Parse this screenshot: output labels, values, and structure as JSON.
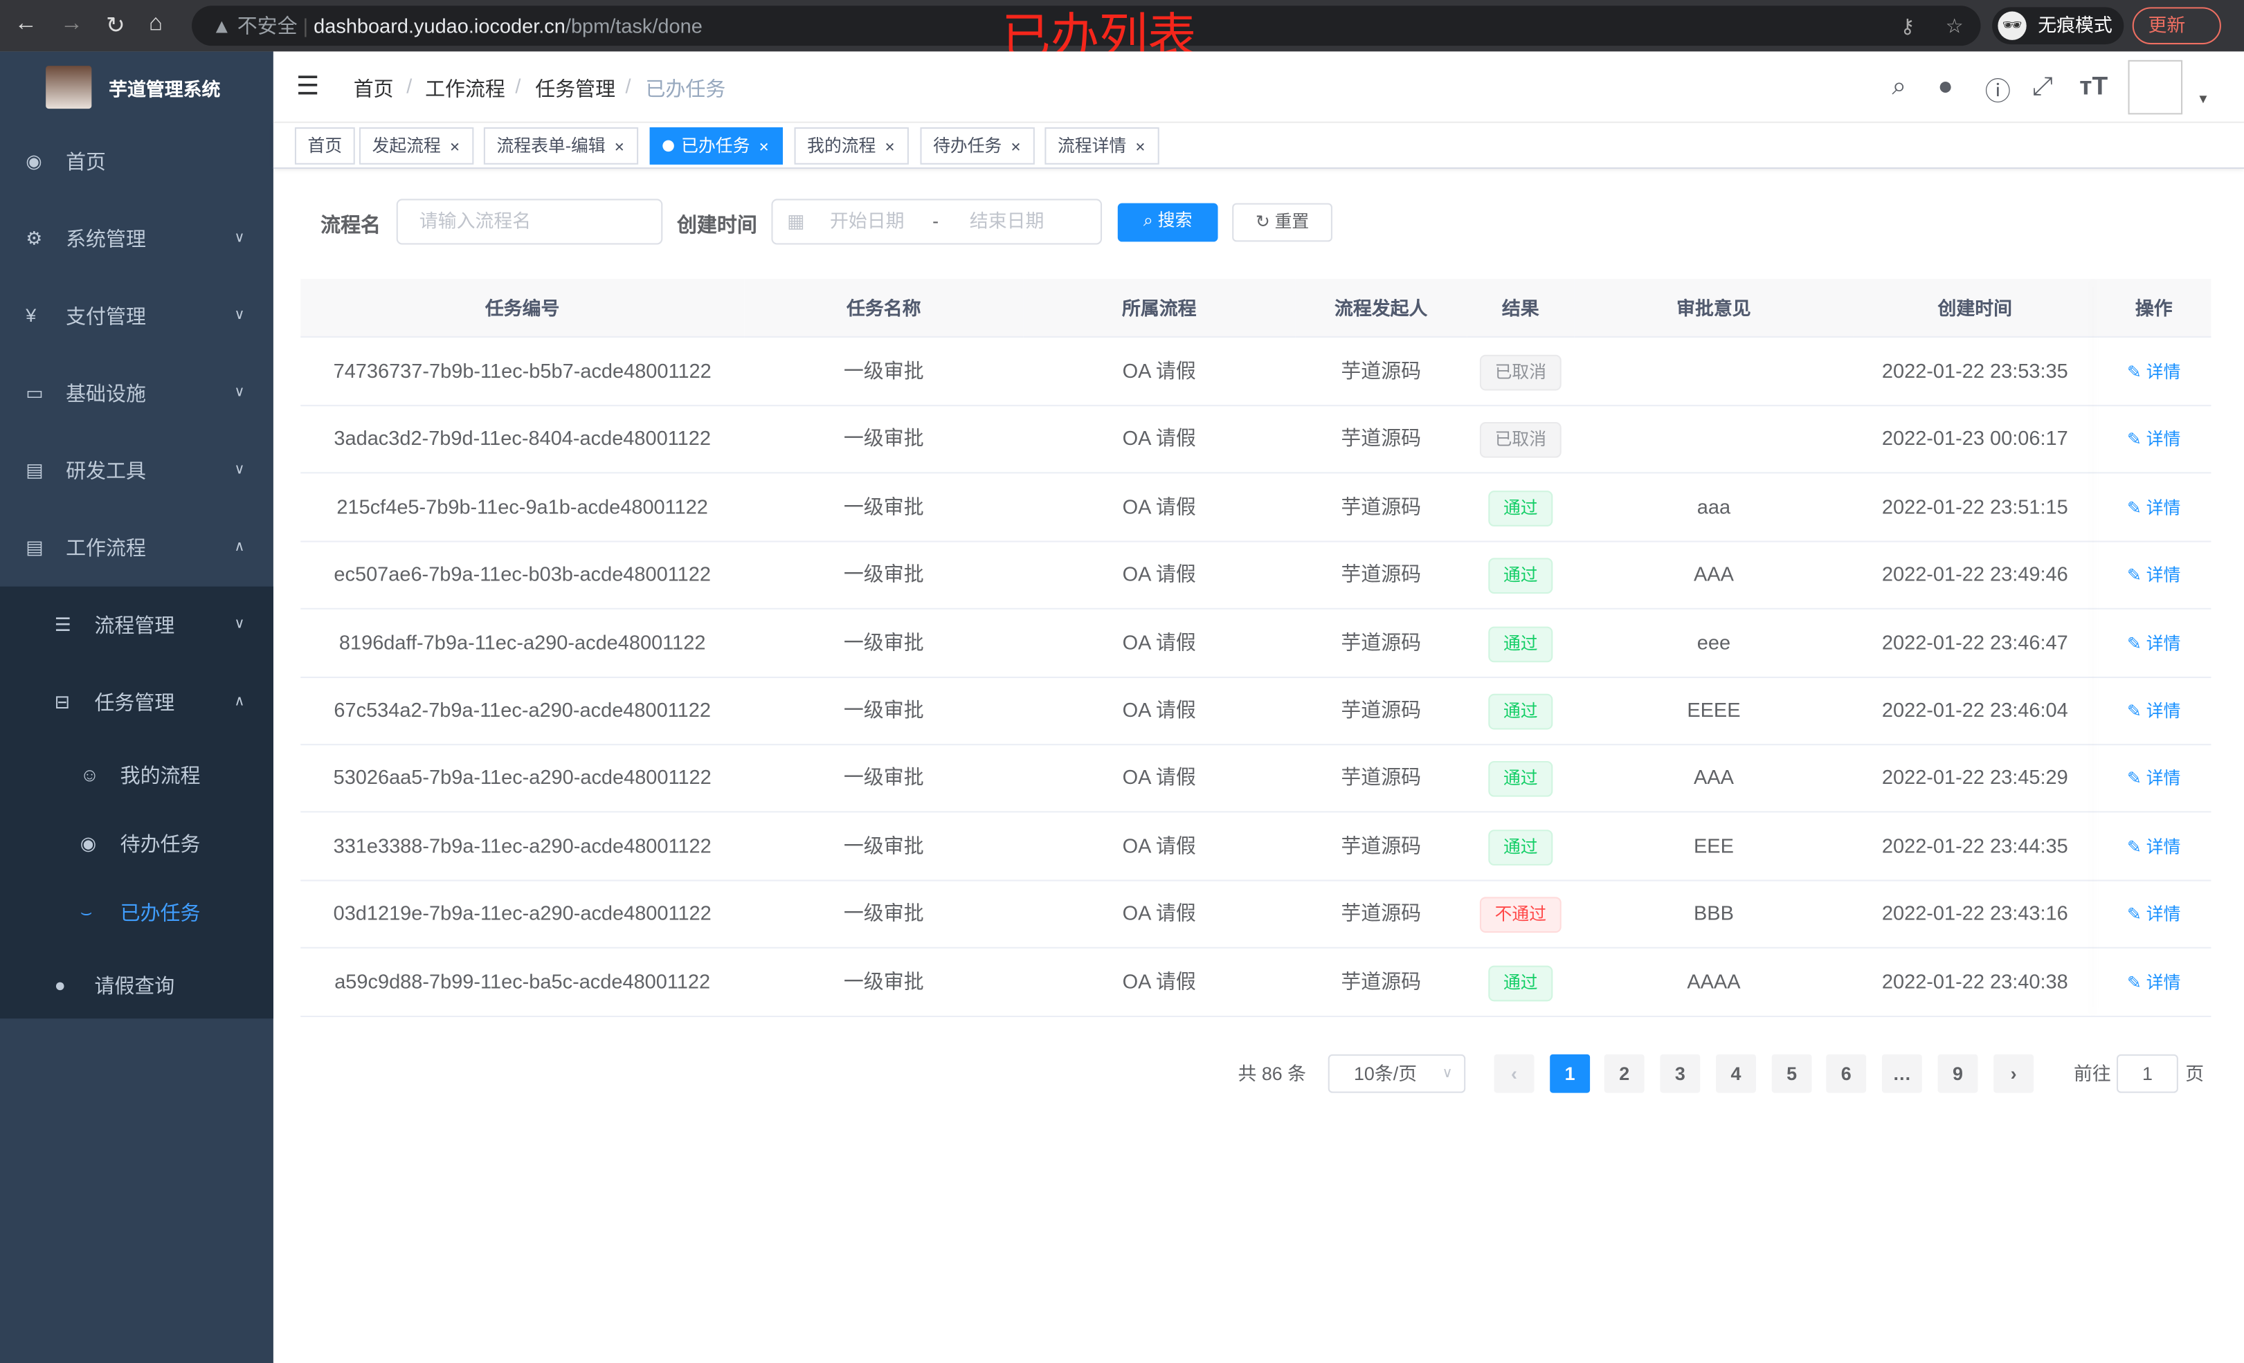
{
  "browser": {
    "security": "不安全",
    "url_host": "dashboard.yudao.iocoder.cn",
    "url_path": "/bpm/task/done",
    "incognito": "无痕模式",
    "update": "更新"
  },
  "overlay_title": "已办列表",
  "sidebar": {
    "title": "芋道管理系统",
    "items": [
      {
        "label": "首页",
        "icon": "dashboard-icon"
      },
      {
        "label": "系统管理",
        "icon": "gear-icon"
      },
      {
        "label": "支付管理",
        "icon": "yen-icon"
      },
      {
        "label": "基础设施",
        "icon": "monitor-icon"
      },
      {
        "label": "研发工具",
        "icon": "toolbox-icon"
      },
      {
        "label": "工作流程",
        "icon": "toolbox-icon"
      },
      {
        "label": "流程管理",
        "icon": "list-icon"
      },
      {
        "label": "任务管理",
        "icon": "tree-icon"
      },
      {
        "label": "我的流程",
        "icon": "people-icon"
      },
      {
        "label": "待办任务",
        "icon": "eye-icon"
      },
      {
        "label": "已办任务",
        "icon": "finish-icon"
      },
      {
        "label": "请假查询",
        "icon": "user-icon"
      }
    ]
  },
  "breadcrumb": [
    "首页",
    "工作流程",
    "任务管理",
    "已办任务"
  ],
  "tags": [
    "首页",
    "发起流程",
    "流程表单-编辑",
    "已办任务",
    "我的流程",
    "待办任务",
    "流程详情"
  ],
  "filter": {
    "name_label": "流程名",
    "name_placeholder": "请输入流程名",
    "time_label": "创建时间",
    "start_placeholder": "开始日期",
    "sep": "-",
    "end_placeholder": "结束日期",
    "search": "搜索",
    "reset": "重置"
  },
  "table": {
    "headers": [
      "任务编号",
      "任务名称",
      "所属流程",
      "流程发起人",
      "结果",
      "审批意见",
      "创建时间",
      "操作"
    ],
    "rows": [
      {
        "id": "74736737-7b9b-11ec-b5b7-acde48001122",
        "name": "一级审批",
        "process": "OA 请假",
        "starter": "芋道源码",
        "result": "已取消",
        "status": "cancel",
        "comment": "",
        "time": "2022-01-22 23:53:35",
        "action": "详情"
      },
      {
        "id": "3adac3d2-7b9d-11ec-8404-acde48001122",
        "name": "一级审批",
        "process": "OA 请假",
        "starter": "芋道源码",
        "result": "已取消",
        "status": "cancel",
        "comment": "",
        "time": "2022-01-23 00:06:17",
        "action": "详情"
      },
      {
        "id": "215cf4e5-7b9b-11ec-9a1b-acde48001122",
        "name": "一级审批",
        "process": "OA 请假",
        "starter": "芋道源码",
        "result": "通过",
        "status": "pass",
        "comment": "aaa",
        "time": "2022-01-22 23:51:15",
        "action": "详情"
      },
      {
        "id": "ec507ae6-7b9a-11ec-b03b-acde48001122",
        "name": "一级审批",
        "process": "OA 请假",
        "starter": "芋道源码",
        "result": "通过",
        "status": "pass",
        "comment": "AAA",
        "time": "2022-01-22 23:49:46",
        "action": "详情"
      },
      {
        "id": "8196daff-7b9a-11ec-a290-acde48001122",
        "name": "一级审批",
        "process": "OA 请假",
        "starter": "芋道源码",
        "result": "通过",
        "status": "pass",
        "comment": "eee",
        "time": "2022-01-22 23:46:47",
        "action": "详情"
      },
      {
        "id": "67c534a2-7b9a-11ec-a290-acde48001122",
        "name": "一级审批",
        "process": "OA 请假",
        "starter": "芋道源码",
        "result": "通过",
        "status": "pass",
        "comment": "EEEE",
        "time": "2022-01-22 23:46:04",
        "action": "详情"
      },
      {
        "id": "53026aa5-7b9a-11ec-a290-acde48001122",
        "name": "一级审批",
        "process": "OA 请假",
        "starter": "芋道源码",
        "result": "通过",
        "status": "pass",
        "comment": "AAA",
        "time": "2022-01-22 23:45:29",
        "action": "详情"
      },
      {
        "id": "331e3388-7b9a-11ec-a290-acde48001122",
        "name": "一级审批",
        "process": "OA 请假",
        "starter": "芋道源码",
        "result": "通过",
        "status": "pass",
        "comment": "EEE",
        "time": "2022-01-22 23:44:35",
        "action": "详情"
      },
      {
        "id": "03d1219e-7b9a-11ec-a290-acde48001122",
        "name": "一级审批",
        "process": "OA 请假",
        "starter": "芋道源码",
        "result": "不通过",
        "status": "fail",
        "comment": "BBB",
        "time": "2022-01-22 23:43:16",
        "action": "详情"
      },
      {
        "id": "a59c9d88-7b99-11ec-ba5c-acde48001122",
        "name": "一级审批",
        "process": "OA 请假",
        "starter": "芋道源码",
        "result": "通过",
        "status": "pass",
        "comment": "AAAA",
        "time": "2022-01-22 23:40:38",
        "action": "详情"
      }
    ]
  },
  "pagination": {
    "total": "共 86 条",
    "page_size": "10条/页",
    "pages": [
      "1",
      "2",
      "3",
      "4",
      "5",
      "6",
      "…",
      "9"
    ],
    "current": "1",
    "goto_label": "前往",
    "goto_value": "1",
    "page_suffix": "页"
  },
  "colors": {
    "accent": "#1890ff",
    "sidebar": "#304156",
    "pass": "#13ce66",
    "fail": "#ff4949"
  }
}
